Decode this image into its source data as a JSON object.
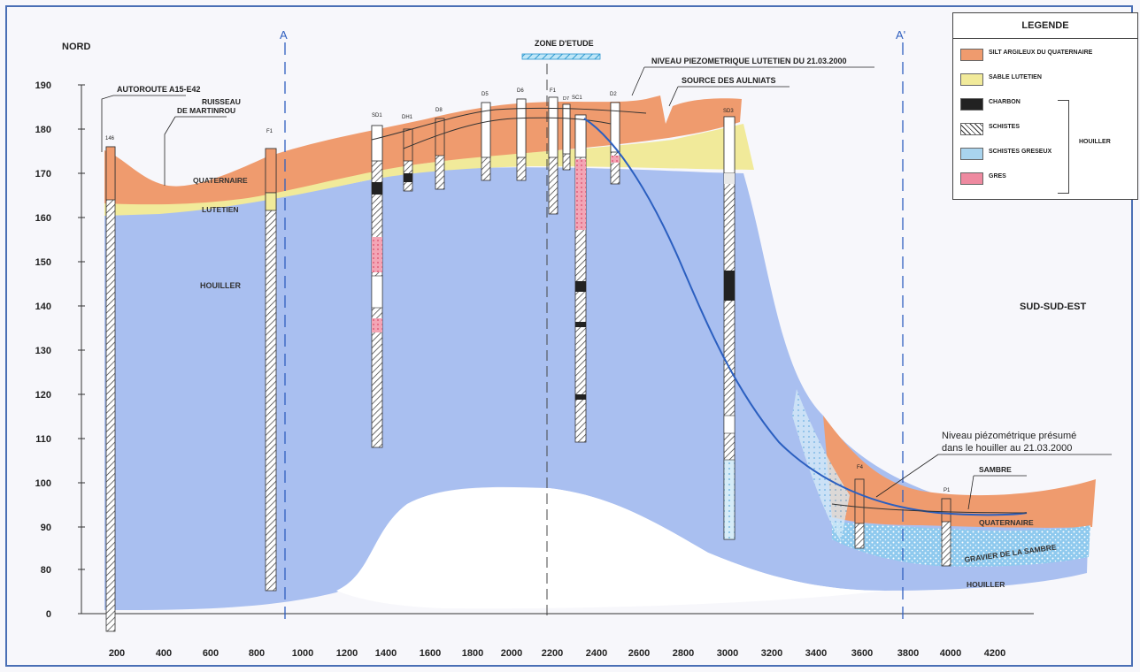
{
  "orientation": {
    "north": "NORD",
    "south": "SUD-SUD-EST"
  },
  "section_markers": {
    "start": "A",
    "end": "A'"
  },
  "y_axis": {
    "ticks": [
      "190",
      "180",
      "170",
      "160",
      "150",
      "140",
      "130",
      "120",
      "110",
      "100",
      "90",
      "80",
      "0"
    ]
  },
  "x_axis": {
    "ticks": [
      "200",
      "400",
      "600",
      "800",
      "1000",
      "1200",
      "1400",
      "1600",
      "1800",
      "2000",
      "2200",
      "2400",
      "2600",
      "2800",
      "3000",
      "3200",
      "3400",
      "3600",
      "3800",
      "4000",
      "4200"
    ]
  },
  "annotations": {
    "autoroute": "AUTOROUTE A15-E42",
    "ruisseau_1": "RUISSEAU",
    "ruisseau_2": "DE MARTINROU",
    "zone_etude": "ZONE D'ETUDE",
    "niveau_lutetien": "NIVEAU PIEZOMETRIQUE LUTETIEN DU 21.03.2000",
    "source": "SOURCE DES AULNIATS",
    "niveau_houiller_1": "Niveau piézométrique présumé",
    "niveau_houiller_2": "dans le houiller au 21.03.2000",
    "sambre": "SAMBRE"
  },
  "layers": {
    "quaternaire": "QUATERNAIRE",
    "lutetien": "LUTETIEN",
    "houiller": "HOUILLER",
    "quaternaire_right": "QUATERNAIRE",
    "gravier": "GRAVIER DE LA SAMBRE",
    "houiller_right": "HOUILLER"
  },
  "boreholes": [
    "146",
    "F1",
    "SD1",
    "DH1",
    "D8",
    "D5",
    "D6",
    "F1",
    "D7",
    "SC1",
    "D2",
    "SD3",
    "F4",
    "P1"
  ],
  "legend": {
    "title": "LEGENDE",
    "items": [
      {
        "label": "SILT ARGILEUX DU QUATERNAIRE",
        "color": "#ef9b6e"
      },
      {
        "label": "SABLE LUTETIEN",
        "color": "#f1ea9a"
      },
      {
        "label": "CHARBON",
        "color": "#222222"
      },
      {
        "label": "SCHISTES",
        "color": "#ffffff"
      },
      {
        "label": "SCHISTES GRESEUX",
        "color": "#a9d4ee"
      },
      {
        "label": "GRES",
        "color": "#ee8aa0"
      }
    ],
    "group_label": "HOUILLER"
  },
  "colors": {
    "quaternaire": "#ef9b6e",
    "lutetien": "#f1ea9a",
    "houiller": "#a9bff0",
    "gravier": "#8ec9ee",
    "piezo_line": "#2b5fc0",
    "frame": "#4a6fb5"
  }
}
